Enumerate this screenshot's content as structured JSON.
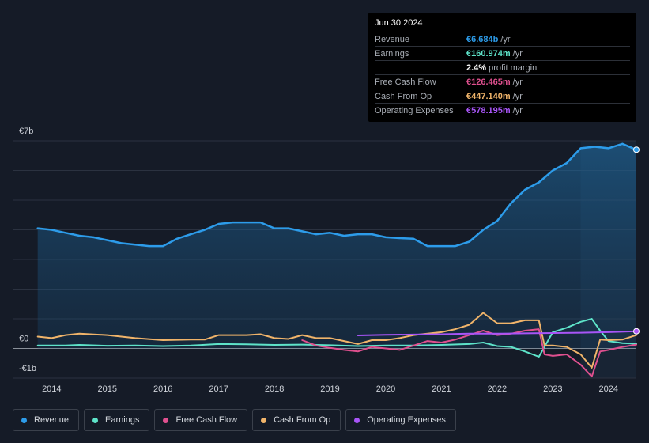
{
  "tooltip": {
    "date": "Jun 30 2024",
    "rows": [
      {
        "label": "Revenue",
        "value": "€6.684b",
        "unit": "/yr",
        "color": "#2d9cea"
      },
      {
        "label": "Earnings",
        "value": "€160.974m",
        "unit": "/yr",
        "color": "#5ee3c9"
      },
      {
        "label": "",
        "value": "2.4%",
        "unit": "profit margin",
        "color": "#ffffff"
      },
      {
        "label": "Free Cash Flow",
        "value": "€126.465m",
        "unit": "/yr",
        "color": "#e0508f"
      },
      {
        "label": "Cash From Op",
        "value": "€447.140m",
        "unit": "/yr",
        "color": "#f0b46a"
      },
      {
        "label": "Operating Expenses",
        "value": "€578.195m",
        "unit": "/yr",
        "color": "#a855f7"
      }
    ]
  },
  "legend": [
    {
      "label": "Revenue",
      "color": "#2d9cea"
    },
    {
      "label": "Earnings",
      "color": "#5ee3c9"
    },
    {
      "label": "Free Cash Flow",
      "color": "#e0508f"
    },
    {
      "label": "Cash From Op",
      "color": "#f0b46a"
    },
    {
      "label": "Operating Expenses",
      "color": "#a855f7"
    }
  ],
  "chart_data": {
    "type": "line",
    "title": "",
    "xlabel": "",
    "ylabel": "",
    "unit": "€b",
    "ylim": [
      -1,
      7
    ],
    "y_tick_labels": [
      {
        "value": 7,
        "label": "€7b"
      },
      {
        "value": 0,
        "label": "€0"
      },
      {
        "value": -1,
        "label": "-€1b"
      }
    ],
    "x_ticks": [
      2014,
      2015,
      2016,
      2017,
      2018,
      2019,
      2020,
      2021,
      2022,
      2023,
      2024
    ],
    "xlim": [
      2013.3,
      2024.5
    ],
    "highlight_from": 2023.5,
    "series": [
      {
        "name": "Revenue",
        "color": "#2d9cea",
        "area": true,
        "endDot": true,
        "points": [
          [
            2013.75,
            4.05
          ],
          [
            2014,
            4.0
          ],
          [
            2014.25,
            3.9
          ],
          [
            2014.5,
            3.8
          ],
          [
            2014.75,
            3.75
          ],
          [
            2015,
            3.65
          ],
          [
            2015.25,
            3.55
          ],
          [
            2015.5,
            3.5
          ],
          [
            2015.75,
            3.45
          ],
          [
            2016,
            3.45
          ],
          [
            2016.25,
            3.7
          ],
          [
            2016.5,
            3.85
          ],
          [
            2016.75,
            4.0
          ],
          [
            2017,
            4.2
          ],
          [
            2017.25,
            4.25
          ],
          [
            2017.5,
            4.25
          ],
          [
            2017.75,
            4.25
          ],
          [
            2018,
            4.05
          ],
          [
            2018.25,
            4.05
          ],
          [
            2018.5,
            3.95
          ],
          [
            2018.75,
            3.85
          ],
          [
            2019,
            3.9
          ],
          [
            2019.25,
            3.8
          ],
          [
            2019.5,
            3.85
          ],
          [
            2019.75,
            3.85
          ],
          [
            2020,
            3.75
          ],
          [
            2020.25,
            3.72
          ],
          [
            2020.5,
            3.7
          ],
          [
            2020.75,
            3.45
          ],
          [
            2021,
            3.45
          ],
          [
            2021.25,
            3.45
          ],
          [
            2021.5,
            3.6
          ],
          [
            2021.75,
            4.0
          ],
          [
            2022,
            4.3
          ],
          [
            2022.25,
            4.9
          ],
          [
            2022.5,
            5.35
          ],
          [
            2022.75,
            5.6
          ],
          [
            2023,
            6.0
          ],
          [
            2023.25,
            6.25
          ],
          [
            2023.5,
            6.75
          ],
          [
            2023.75,
            6.8
          ],
          [
            2024,
            6.75
          ],
          [
            2024.25,
            6.9
          ],
          [
            2024.5,
            6.7
          ]
        ]
      },
      {
        "name": "Earnings",
        "color": "#5ee3c9",
        "points": [
          [
            2013.75,
            0.1
          ],
          [
            2014.25,
            0.1
          ],
          [
            2014.5,
            0.12
          ],
          [
            2015,
            0.09
          ],
          [
            2015.5,
            0.1
          ],
          [
            2016,
            0.08
          ],
          [
            2016.5,
            0.1
          ],
          [
            2017,
            0.15
          ],
          [
            2017.5,
            0.14
          ],
          [
            2018,
            0.12
          ],
          [
            2018.5,
            0.13
          ],
          [
            2019,
            0.11
          ],
          [
            2019.5,
            0.08
          ],
          [
            2020,
            0.1
          ],
          [
            2020.5,
            0.1
          ],
          [
            2021,
            0.12
          ],
          [
            2021.5,
            0.15
          ],
          [
            2021.75,
            0.2
          ],
          [
            2022,
            0.08
          ],
          [
            2022.25,
            0.05
          ],
          [
            2022.5,
            -0.1
          ],
          [
            2022.75,
            -0.28
          ],
          [
            2023,
            0.55
          ],
          [
            2023.25,
            0.7
          ],
          [
            2023.5,
            0.9
          ],
          [
            2023.7,
            1.0
          ],
          [
            2023.85,
            0.6
          ],
          [
            2024,
            0.25
          ],
          [
            2024.25,
            0.18
          ],
          [
            2024.5,
            0.16
          ]
        ]
      },
      {
        "name": "Free Cash Flow",
        "color": "#e0508f",
        "points": [
          [
            2018.5,
            0.28
          ],
          [
            2018.75,
            0.1
          ],
          [
            2019,
            0.02
          ],
          [
            2019.25,
            -0.05
          ],
          [
            2019.5,
            -0.1
          ],
          [
            2019.75,
            0.05
          ],
          [
            2020,
            0.0
          ],
          [
            2020.25,
            -0.05
          ],
          [
            2020.5,
            0.1
          ],
          [
            2020.75,
            0.25
          ],
          [
            2021,
            0.2
          ],
          [
            2021.25,
            0.3
          ],
          [
            2021.5,
            0.45
          ],
          [
            2021.75,
            0.6
          ],
          [
            2022,
            0.45
          ],
          [
            2022.25,
            0.5
          ],
          [
            2022.5,
            0.6
          ],
          [
            2022.75,
            0.65
          ],
          [
            2022.85,
            -0.2
          ],
          [
            2023,
            -0.25
          ],
          [
            2023.25,
            -0.2
          ],
          [
            2023.5,
            -0.55
          ],
          [
            2023.7,
            -0.95
          ],
          [
            2023.85,
            -0.1
          ],
          [
            2024,
            -0.05
          ],
          [
            2024.25,
            0.05
          ],
          [
            2024.5,
            0.13
          ]
        ]
      },
      {
        "name": "Cash From Op",
        "color": "#f0b46a",
        "points": [
          [
            2013.75,
            0.4
          ],
          [
            2014,
            0.35
          ],
          [
            2014.25,
            0.45
          ],
          [
            2014.5,
            0.5
          ],
          [
            2015,
            0.45
          ],
          [
            2015.5,
            0.35
          ],
          [
            2016,
            0.28
          ],
          [
            2016.5,
            0.3
          ],
          [
            2016.75,
            0.3
          ],
          [
            2017,
            0.45
          ],
          [
            2017.5,
            0.45
          ],
          [
            2017.75,
            0.48
          ],
          [
            2018,
            0.35
          ],
          [
            2018.25,
            0.32
          ],
          [
            2018.5,
            0.45
          ],
          [
            2018.75,
            0.35
          ],
          [
            2019,
            0.35
          ],
          [
            2019.5,
            0.15
          ],
          [
            2019.75,
            0.28
          ],
          [
            2020,
            0.28
          ],
          [
            2020.25,
            0.35
          ],
          [
            2020.5,
            0.45
          ],
          [
            2020.75,
            0.5
          ],
          [
            2021,
            0.55
          ],
          [
            2021.25,
            0.65
          ],
          [
            2021.5,
            0.8
          ],
          [
            2021.75,
            1.2
          ],
          [
            2022,
            0.85
          ],
          [
            2022.25,
            0.85
          ],
          [
            2022.5,
            0.95
          ],
          [
            2022.75,
            0.95
          ],
          [
            2022.85,
            0.1
          ],
          [
            2023,
            0.1
          ],
          [
            2023.25,
            0.05
          ],
          [
            2023.5,
            -0.2
          ],
          [
            2023.7,
            -0.65
          ],
          [
            2023.85,
            0.3
          ],
          [
            2024,
            0.28
          ],
          [
            2024.25,
            0.3
          ],
          [
            2024.5,
            0.45
          ]
        ]
      },
      {
        "name": "Operating Expenses",
        "color": "#a855f7",
        "endDot": true,
        "points": [
          [
            2019.5,
            0.44
          ],
          [
            2020,
            0.46
          ],
          [
            2020.5,
            0.47
          ],
          [
            2021,
            0.48
          ],
          [
            2021.5,
            0.5
          ],
          [
            2022,
            0.5
          ],
          [
            2022.5,
            0.51
          ],
          [
            2023,
            0.52
          ],
          [
            2023.5,
            0.53
          ],
          [
            2024,
            0.55
          ],
          [
            2024.5,
            0.58
          ]
        ]
      }
    ]
  }
}
